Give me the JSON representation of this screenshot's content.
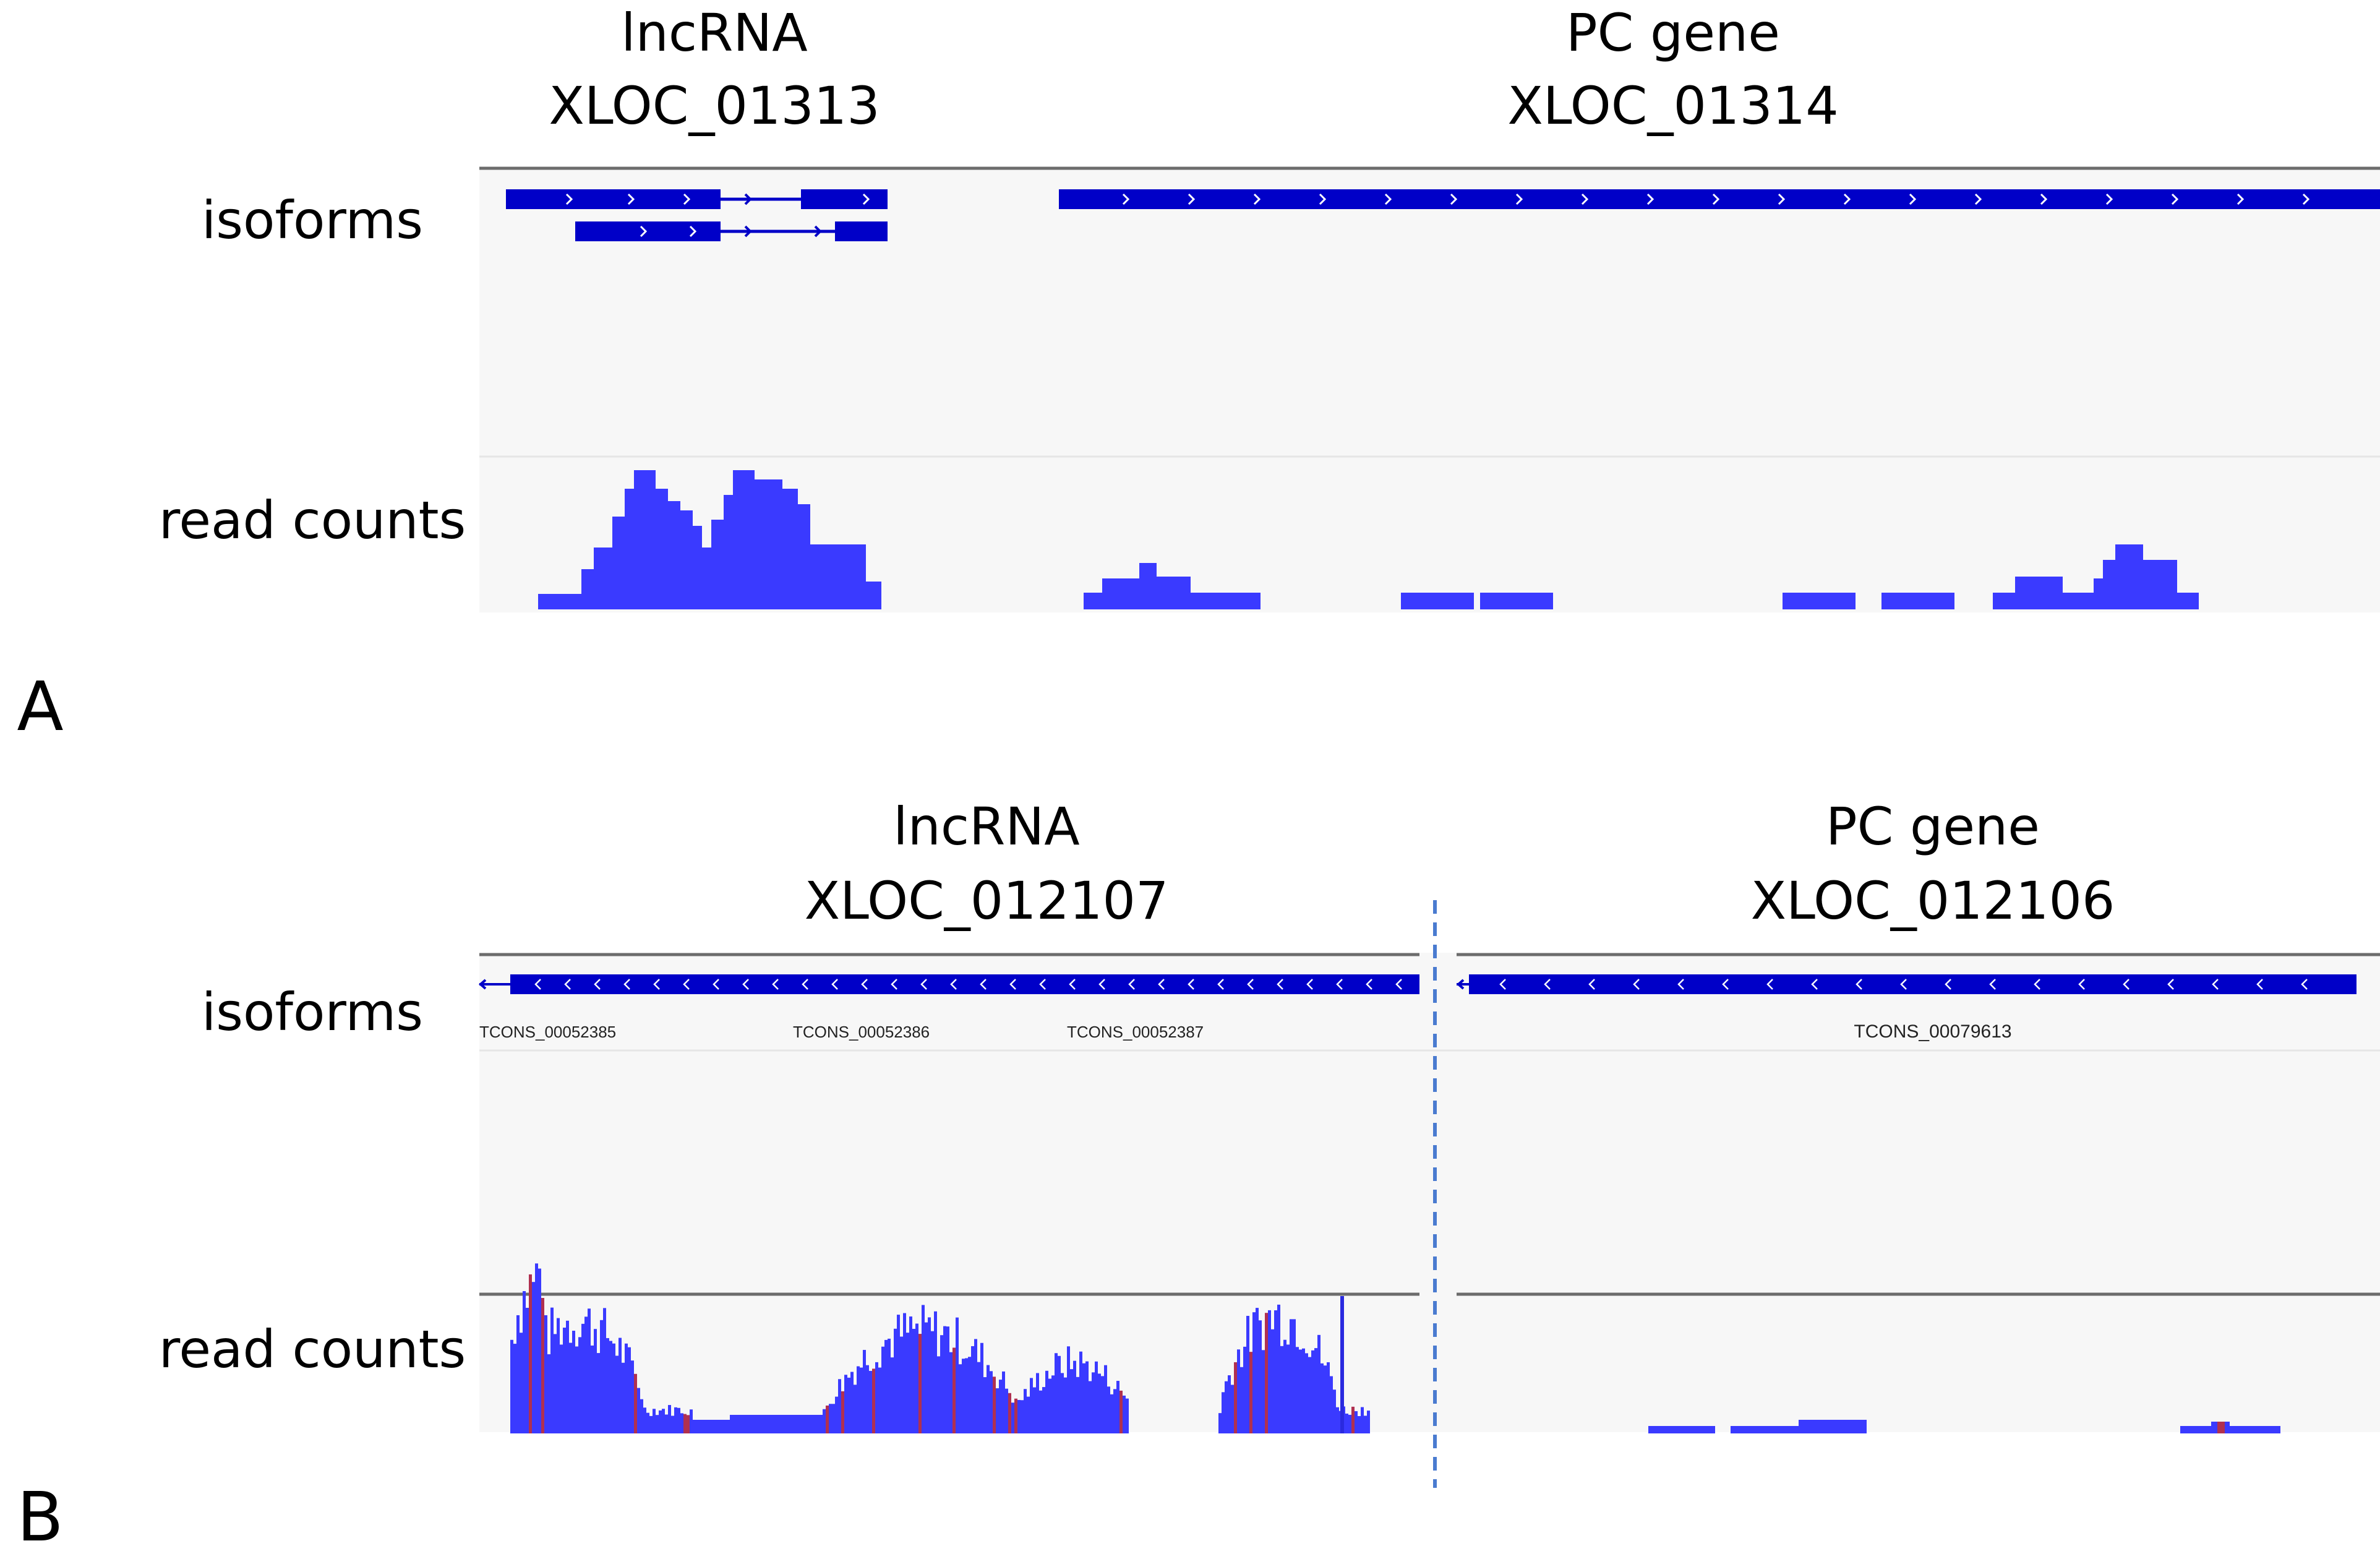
{
  "figure": {
    "panels": [
      {
        "letter": "A",
        "left_gene": {
          "type": "lncRNA",
          "id": "XLOC_01313"
        },
        "right_gene": {
          "type": "PC gene",
          "id": "XLOC_01314"
        },
        "tracks": {
          "isoforms": "isoforms",
          "read_counts": "read counts"
        }
      },
      {
        "letter": "B",
        "left_gene": {
          "type": "lncRNA",
          "id": "XLOC_012107",
          "isoforms": [
            "TCONS_00052385",
            "TCONS_00052386",
            "TCONS_00052387"
          ]
        },
        "right_gene": {
          "type": "PC gene",
          "id": "XLOC_012106",
          "isoforms": [
            "TCONS_00079613"
          ]
        },
        "tracks": {
          "isoforms": "isoforms",
          "read_counts": "read counts"
        }
      }
    ]
  },
  "colors": {
    "feature": "#0000c8",
    "coverage": "#3a3aff",
    "coverage_mismatch": "#b03050",
    "track_bg": "#f7f7f7",
    "separator": "#6c6c6c",
    "divider": "#4a7bd0"
  }
}
